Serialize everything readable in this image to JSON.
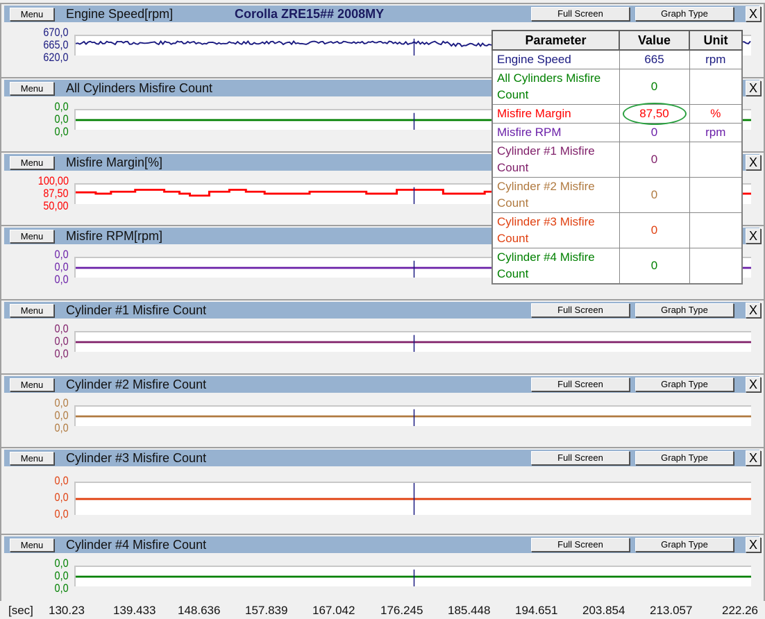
{
  "vehicle": "Corolla ZRE15## 2008MY",
  "buttons": {
    "menu": "Menu",
    "full_screen": "Full Screen",
    "graph_type": "Graph Type",
    "close": "X"
  },
  "panels": [
    {
      "title": "Engine Speed[rpm]",
      "color": "#1a1a80",
      "labels": [
        "670,0",
        "665,0",
        "620,0"
      ],
      "show_controls": false
    },
    {
      "title": "All Cylinders Misfire Count",
      "color": "#008000",
      "labels": [
        "0,0",
        "0,0",
        "0,0"
      ],
      "show_controls": false
    },
    {
      "title": "Misfire Margin[%]",
      "color": "#ff0000",
      "labels": [
        "100,00",
        "87,50",
        "50,00"
      ],
      "show_controls": false
    },
    {
      "title": "Misfire RPM[rpm]",
      "color": "#6a1fa8",
      "labels": [
        "0,0",
        "0,0",
        "0,0"
      ],
      "show_controls": false
    },
    {
      "title": "Cylinder #1 Misfire Count",
      "color": "#80206a",
      "labels": [
        "0,0",
        "0,0",
        "0,0"
      ],
      "show_controls": true
    },
    {
      "title": "Cylinder #2 Misfire Count",
      "color": "#b07a40",
      "labels": [
        "0,0",
        "0,0",
        "0,0"
      ],
      "show_controls": true
    },
    {
      "title": "Cylinder #3 Misfire Count",
      "color": "#e04010",
      "labels": [
        "0,0",
        "0,0",
        "0,0"
      ],
      "show_controls": true
    },
    {
      "title": "Cylinder #4 Misfire Count",
      "color": "#008000",
      "labels": [
        "0,0",
        "0,0",
        "0,0"
      ],
      "show_controls": true
    }
  ],
  "time_axis": {
    "unit": "[sec]",
    "ticks": [
      "130.23",
      "139.433",
      "148.636",
      "157.839",
      "167.042",
      "176.245",
      "185.448",
      "194.651",
      "203.854",
      "213.057",
      "222.26"
    ]
  },
  "table": {
    "headers": [
      "Parameter",
      "Value",
      "Unit"
    ],
    "rows": [
      {
        "parameter": "Engine Speed",
        "value": "665",
        "unit": "rpm",
        "color": "#1a1a80"
      },
      {
        "parameter": "All Cylinders Misfire Count",
        "value": "0",
        "unit": "",
        "color": "#008000"
      },
      {
        "parameter": "Misfire Margin",
        "value": "87,50",
        "unit": "%",
        "color": "#ff0000",
        "highlighted": true
      },
      {
        "parameter": "Misfire RPM",
        "value": "0",
        "unit": "rpm",
        "color": "#6a1fa8"
      },
      {
        "parameter": "Cylinder #1 Misfire Count",
        "value": "0",
        "unit": "",
        "color": "#80206a"
      },
      {
        "parameter": "Cylinder #2 Misfire Count",
        "value": "0",
        "unit": "",
        "color": "#b07a40"
      },
      {
        "parameter": "Cylinder #3 Misfire Count",
        "value": "0",
        "unit": "",
        "color": "#e04010"
      },
      {
        "parameter": "Cylinder #4 Misfire Count",
        "value": "0",
        "unit": "",
        "color": "#008000"
      }
    ]
  }
}
